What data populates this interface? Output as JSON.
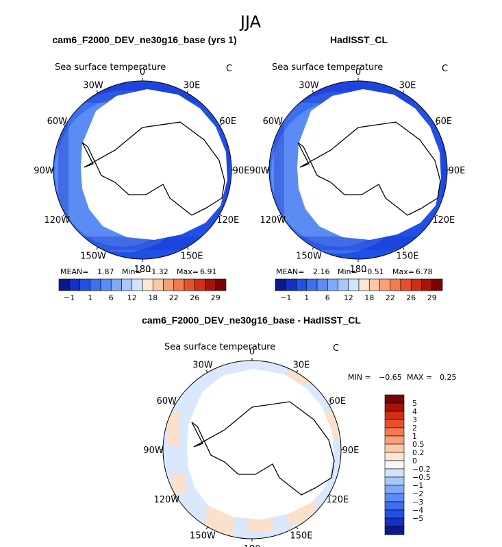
{
  "season": "JJA",
  "panels": [
    {
      "id": "model",
      "title": "cam6_F2000_DEV_ne30g16_base (yrs 1)",
      "variable": "Sea surface temperature",
      "units": "C",
      "stats": {
        "mean_label": "MEAN=",
        "mean": "1.87",
        "min_label": "Min=",
        "min": "−1.32",
        "max_label": "Max=",
        "max": "6.91"
      }
    },
    {
      "id": "obs",
      "title": "HadISST_CL",
      "variable": "Sea surface temperature",
      "units": "C",
      "stats": {
        "mean_label": "MEAN=",
        "mean": "2.16",
        "min_label": "Min=",
        "min": "−0.51",
        "max_label": "Max=",
        "max": "6.78"
      }
    },
    {
      "id": "diff",
      "title": "cam6_F2000_DEV_ne30g16_base - HadISST_CL",
      "variable": "Sea surface temperature",
      "units": "C",
      "stats": {
        "min_label": "MIN =",
        "min": "−0.65",
        "max_label": "MAX =",
        "max": "0.25"
      }
    }
  ],
  "longitude_labels": [
    "0",
    "30E",
    "60E",
    "90E",
    "120E",
    "150E",
    "180",
    "150W",
    "120W",
    "90W",
    "60W",
    "30W"
  ],
  "chart_data": {
    "type": "heatmap",
    "projection": "south-polar-stereographic",
    "abs_colorbar": {
      "orientation": "horizontal",
      "tick_labels": [
        "−1",
        "1",
        "6",
        "12",
        "18",
        "22",
        "26",
        "29"
      ],
      "colors": [
        "#0a1a8c",
        "#1430c8",
        "#2050e6",
        "#3c70f0",
        "#5a8cf4",
        "#7eaaf8",
        "#a8c8fb",
        "#d2e4fc",
        "#fde6d2",
        "#fbc8a6",
        "#f8a07a",
        "#f27a4e",
        "#e8502a",
        "#d22e14",
        "#a81208",
        "#7a0404"
      ]
    },
    "diff_colorbar": {
      "orientation": "vertical",
      "tick_labels": [
        "5",
        "4",
        "3",
        "2",
        "1",
        "0.5",
        "0.2",
        "0",
        "−0.2",
        "−0.5",
        "−1",
        "−2",
        "−3",
        "−4",
        "−5"
      ],
      "colors": [
        "#7a0404",
        "#a81208",
        "#d22e14",
        "#e8502a",
        "#f27a4e",
        "#f8a07a",
        "#fbc8a6",
        "#fde6d2",
        "#f6f6f6",
        "#d2e4fc",
        "#a8c8fb",
        "#7eaaf8",
        "#5a8cf4",
        "#3c70f0",
        "#2050e6",
        "#1430c8",
        "#0a1a8c"
      ]
    }
  }
}
